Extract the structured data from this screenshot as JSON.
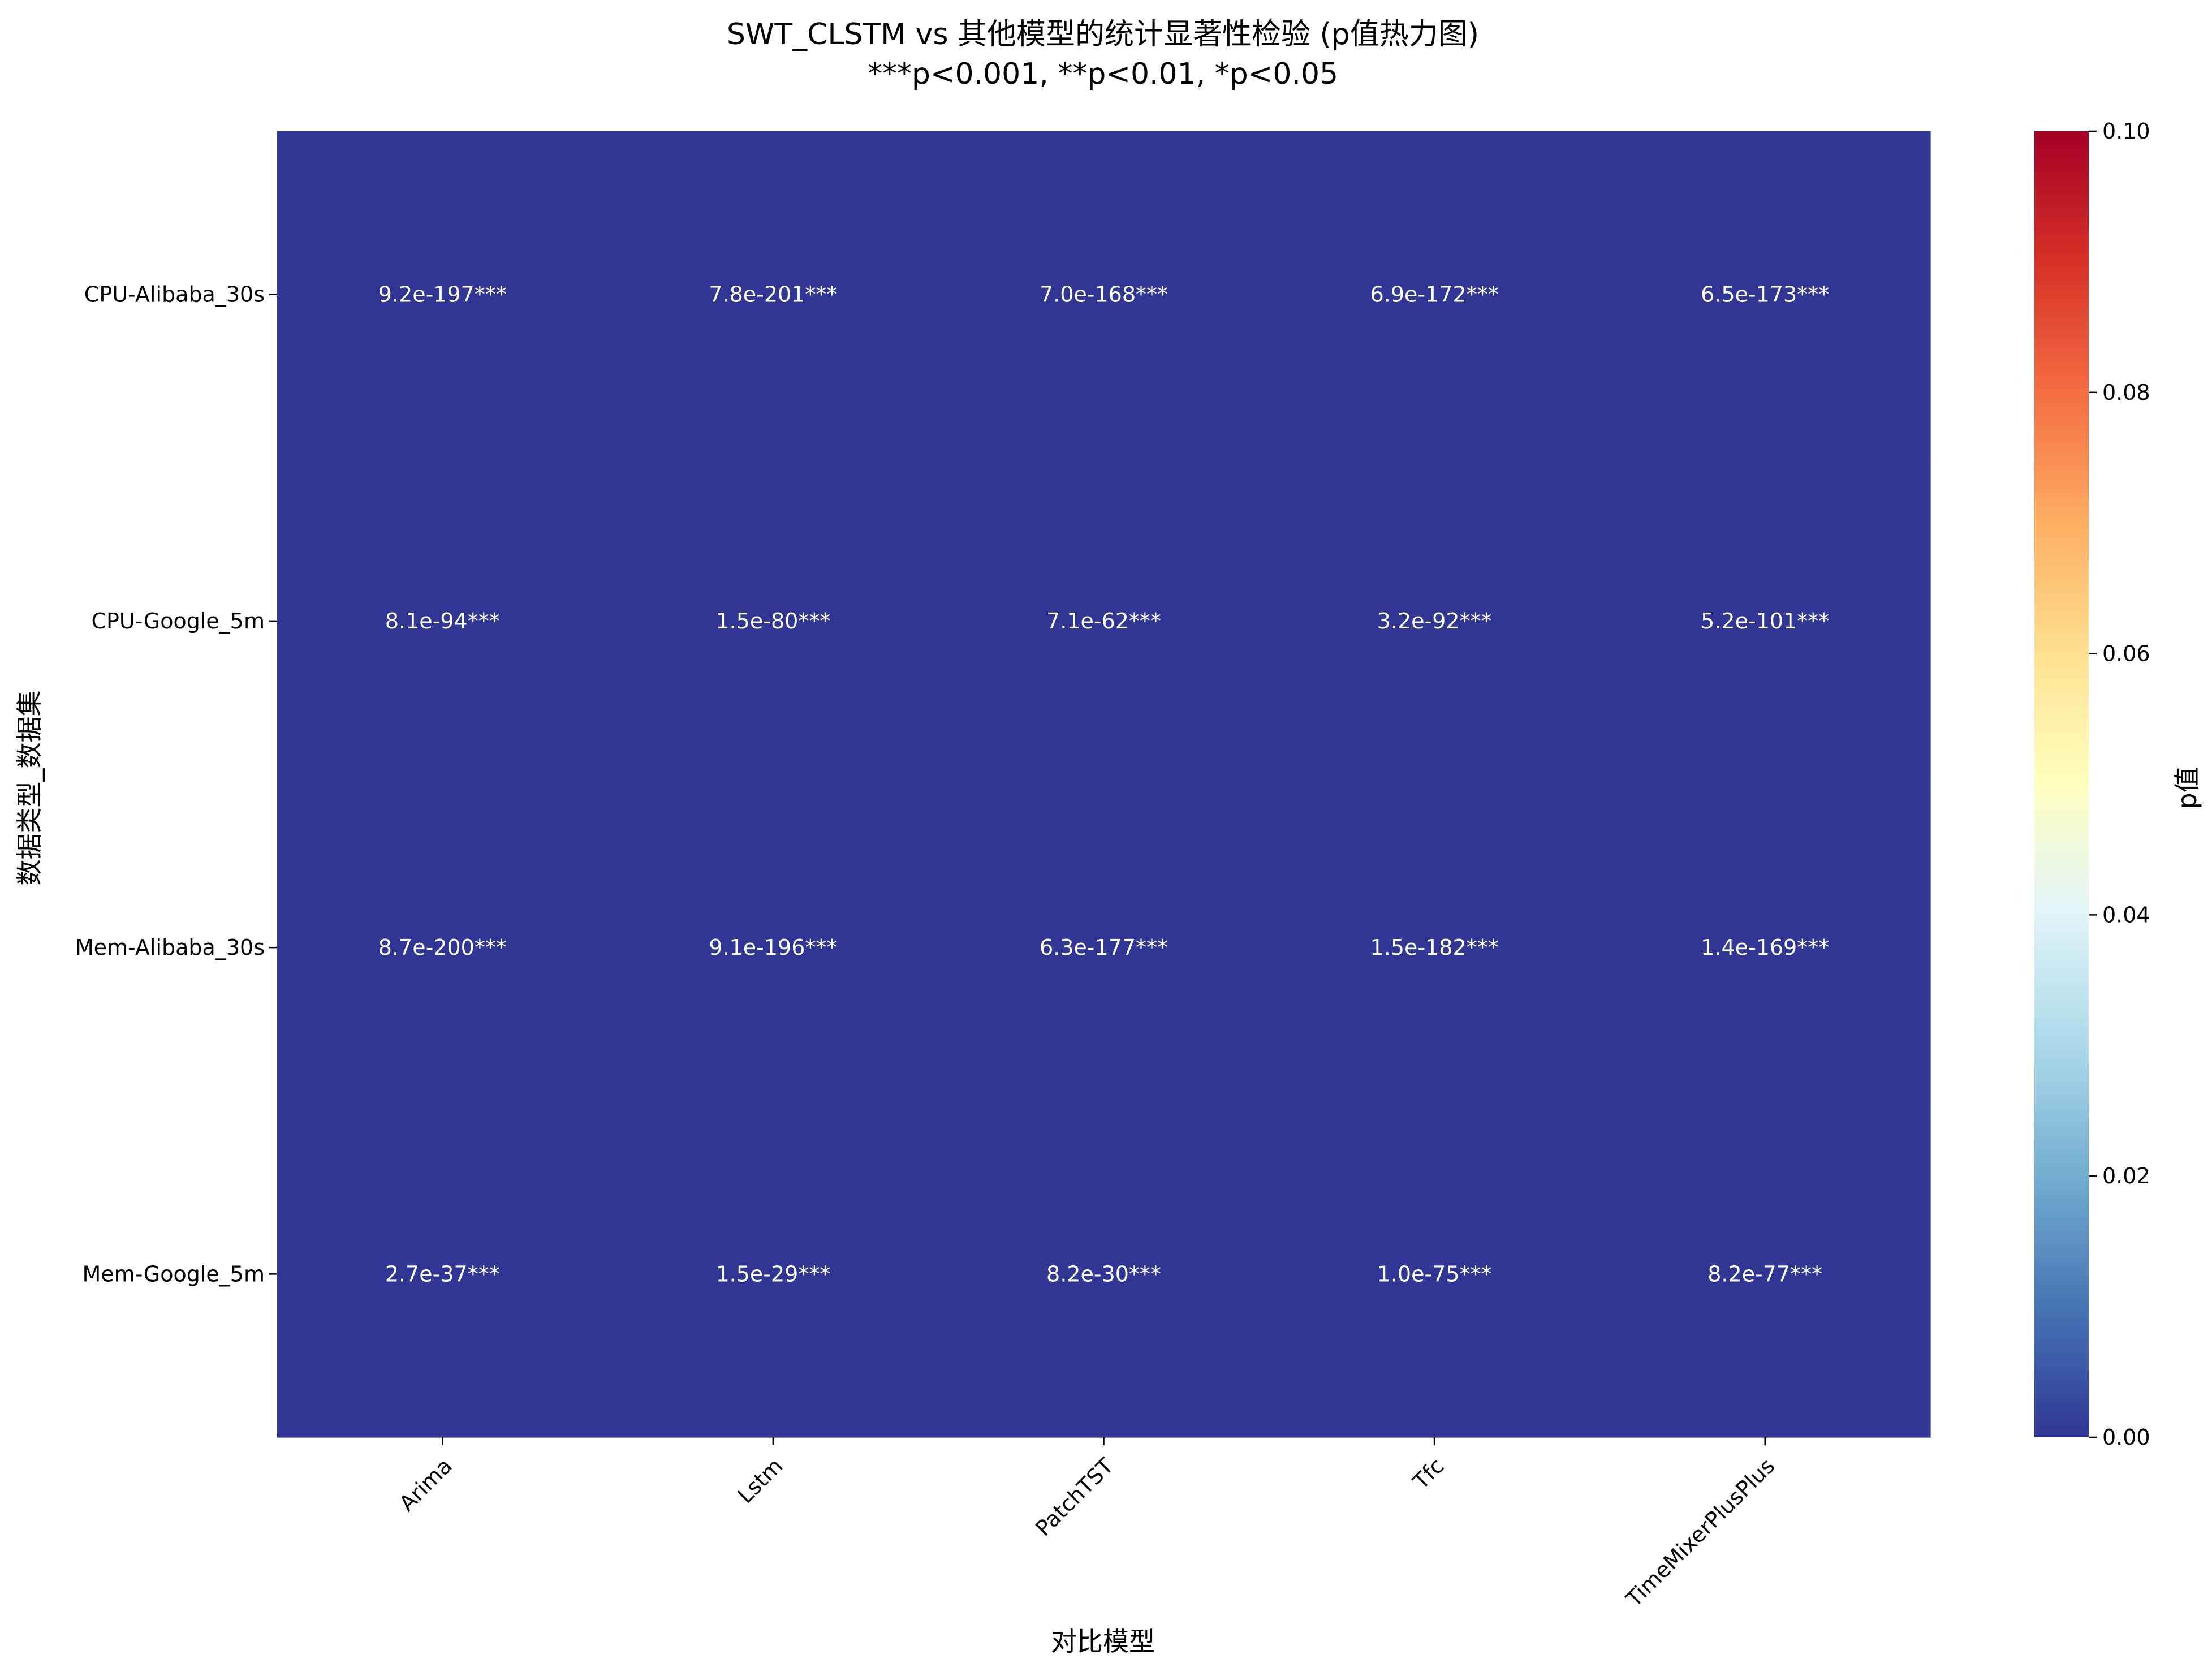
{
  "chart_data": {
    "type": "heatmap",
    "title": "SWT_CLSTM vs 其他模型的统计显著性检验 (p值热力图)",
    "subtitle": "***p<0.001, **p<0.01, *p<0.05",
    "xlabel": "对比模型",
    "ylabel": "数据类型_数据集",
    "x_categories": [
      "Arima",
      "Lstm",
      "PatchTST",
      "Tfc",
      "TimeMixerPlusPlus"
    ],
    "y_categories": [
      "CPU-Alibaba_30s",
      "CPU-Google_5m",
      "Mem-Alibaba_30s",
      "Mem-Google_5m"
    ],
    "values": [
      [
        9.2e-197,
        7.8e-201,
        7e-168,
        6.9e-172,
        6.5e-173
      ],
      [
        8.1e-94,
        1.5e-80,
        7.1e-62,
        3.2e-92,
        5.2e-101
      ],
      [
        8.7e-200,
        9.1e-196,
        6.3e-177,
        1.5e-182,
        1.4e-169
      ],
      [
        2.7e-37,
        1.5e-29,
        8.2e-30,
        1e-75,
        8.2e-77
      ]
    ],
    "cell_labels": [
      [
        "9.2e-197***",
        "7.8e-201***",
        "7.0e-168***",
        "6.9e-172***",
        "6.5e-173***"
      ],
      [
        "8.1e-94***",
        "1.5e-80***",
        "7.1e-62***",
        "3.2e-92***",
        "5.2e-101***"
      ],
      [
        "8.7e-200***",
        "9.1e-196***",
        "6.3e-177***",
        "1.5e-182***",
        "1.4e-169***"
      ],
      [
        "2.7e-37***",
        "1.5e-29***",
        "8.2e-30***",
        "1.0e-75***",
        "8.2e-77***"
      ]
    ],
    "colormap": "RdYlBu_r",
    "colormap_stops": [
      "#313695",
      "#4575b4",
      "#74add1",
      "#abd9e9",
      "#e0f3f8",
      "#ffffbf",
      "#fee090",
      "#fdae61",
      "#f46d43",
      "#d73027",
      "#a50026"
    ],
    "vmin": 0.0,
    "vmax": 0.1,
    "colorbar": {
      "label": "p值",
      "ticks": [
        0.0,
        0.02,
        0.04,
        0.06,
        0.08,
        0.1
      ],
      "tick_labels": [
        "0.00",
        "0.02",
        "0.04",
        "0.06",
        "0.08",
        "0.10"
      ]
    },
    "x_tick_rotation_deg": 45
  }
}
